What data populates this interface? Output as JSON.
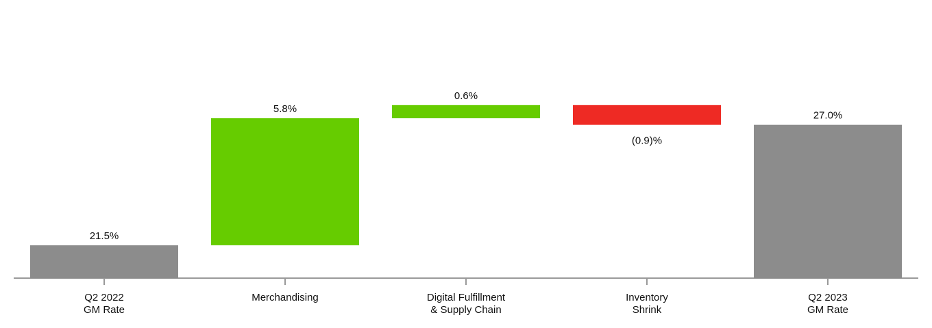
{
  "chart_data": {
    "type": "waterfall",
    "categories": [
      "Q2 2022\nGM Rate",
      "Merchandising",
      "Digital Fulfillment\n& Supply Chain",
      "Inventory\nShrink",
      "Q2 2023\nGM Rate"
    ],
    "values": [
      21.5,
      5.8,
      0.6,
      -0.9,
      27.0
    ],
    "value_labels": [
      "21.5%",
      "5.8%",
      "0.6%",
      "(0.9)%",
      "27.0%"
    ],
    "measure": [
      "total",
      "relative",
      "relative",
      "relative",
      "total"
    ],
    "colors": [
      "#8c8c8c",
      "#66cc00",
      "#66cc00",
      "#ee2a24",
      "#8c8c8c"
    ],
    "ylim": [
      20,
      32.7
    ]
  }
}
